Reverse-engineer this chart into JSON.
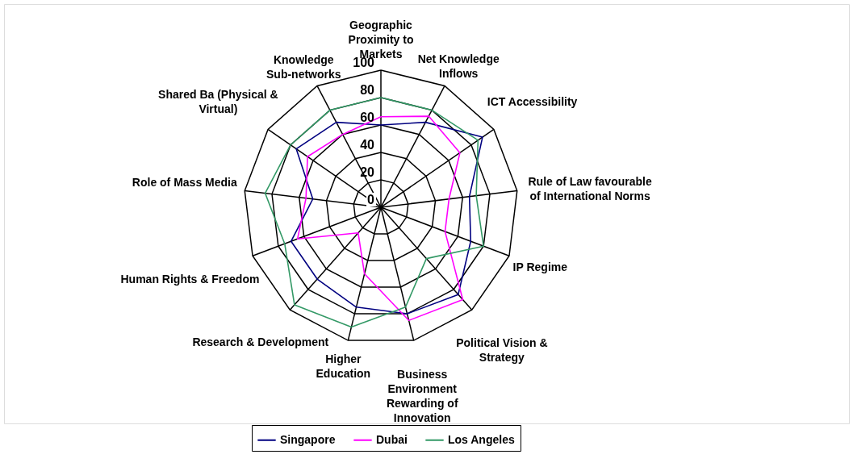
{
  "chart_data": {
    "type": "radar",
    "categories": [
      "Geographic Proximity to Markets",
      "Net Knowledge Inflows",
      "ICT Accessibility",
      "Rule of Law favourable of International Norms",
      "IP Regime",
      "Political Vision & Strategy",
      "Business Environment Rewarding of Innovation",
      "Higher Education",
      "Research & Development",
      "Human Rights & Freedom",
      "Role of Mass Media",
      "Shared Ba (Physical & Virtual)",
      "Knowledge Sub-networks"
    ],
    "series": [
      {
        "name": "Singapore",
        "color": "#000080",
        "values": [
          60,
          70,
          90,
          65,
          70,
          85,
          80,
          75,
          70,
          70,
          50,
          75,
          70
        ]
      },
      {
        "name": "Dubai",
        "color": "#ff00ff",
        "values": [
          66,
          75,
          70,
          50,
          50,
          90,
          85,
          50,
          25,
          65,
          55,
          65,
          60
        ]
      },
      {
        "name": "Los Angeles",
        "color": "#339966",
        "values": [
          80,
          80,
          86,
          70,
          80,
          50,
          75,
          90,
          95,
          75,
          85,
          80,
          80
        ]
      }
    ],
    "ylim": [
      0,
      100
    ],
    "yticks": [
      0,
      20,
      40,
      60,
      80,
      100
    ],
    "legend": "bottom",
    "grid": true,
    "marker": "none",
    "line_style": "solid"
  }
}
